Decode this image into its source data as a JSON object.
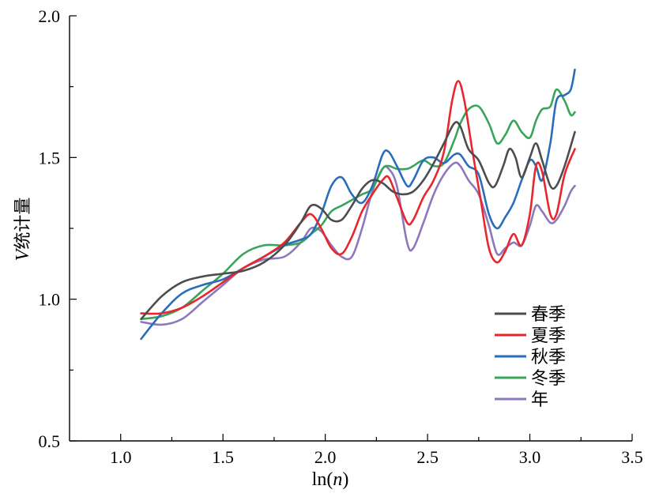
{
  "chart_data": {
    "type": "line",
    "xlabel": "ln(n)",
    "ylabel": "V统计量",
    "xlim": [
      0.75,
      3.5
    ],
    "ylim": [
      0.5,
      2.0
    ],
    "xticks": [
      "1.0",
      "1.5",
      "2.0",
      "2.5",
      "3.0",
      "3.5"
    ],
    "yticks": [
      "0.5",
      "1.0",
      "1.5",
      "2.0"
    ],
    "grid": false,
    "legend_position": "lower-right",
    "series": [
      {
        "name": "春季",
        "color": "#4d4d4d",
        "points": [
          [
            1.1,
            0.93
          ],
          [
            1.2,
            1.01
          ],
          [
            1.3,
            1.06
          ],
          [
            1.4,
            1.08
          ],
          [
            1.5,
            1.09
          ],
          [
            1.6,
            1.1
          ],
          [
            1.7,
            1.13
          ],
          [
            1.8,
            1.19
          ],
          [
            1.88,
            1.27
          ],
          [
            1.93,
            1.33
          ],
          [
            1.98,
            1.32
          ],
          [
            2.03,
            1.28
          ],
          [
            2.08,
            1.28
          ],
          [
            2.13,
            1.33
          ],
          [
            2.18,
            1.39
          ],
          [
            2.23,
            1.42
          ],
          [
            2.28,
            1.41
          ],
          [
            2.33,
            1.38
          ],
          [
            2.38,
            1.37
          ],
          [
            2.43,
            1.38
          ],
          [
            2.48,
            1.42
          ],
          [
            2.53,
            1.48
          ],
          [
            2.58,
            1.55
          ],
          [
            2.63,
            1.62
          ],
          [
            2.66,
            1.61
          ],
          [
            2.7,
            1.53
          ],
          [
            2.75,
            1.49
          ],
          [
            2.8,
            1.41
          ],
          [
            2.83,
            1.4
          ],
          [
            2.87,
            1.47
          ],
          [
            2.9,
            1.53
          ],
          [
            2.93,
            1.5
          ],
          [
            2.96,
            1.43
          ],
          [
            3.0,
            1.5
          ],
          [
            3.03,
            1.55
          ],
          [
            3.06,
            1.49
          ],
          [
            3.1,
            1.4
          ],
          [
            3.13,
            1.4
          ],
          [
            3.17,
            1.47
          ],
          [
            3.22,
            1.59
          ]
        ]
      },
      {
        "name": "夏季",
        "color": "#e8262b",
        "points": [
          [
            1.1,
            0.95
          ],
          [
            1.2,
            0.95
          ],
          [
            1.3,
            0.97
          ],
          [
            1.4,
            1.01
          ],
          [
            1.5,
            1.06
          ],
          [
            1.6,
            1.11
          ],
          [
            1.7,
            1.15
          ],
          [
            1.8,
            1.2
          ],
          [
            1.88,
            1.27
          ],
          [
            1.93,
            1.3
          ],
          [
            1.98,
            1.25
          ],
          [
            2.03,
            1.18
          ],
          [
            2.08,
            1.16
          ],
          [
            2.13,
            1.22
          ],
          [
            2.18,
            1.31
          ],
          [
            2.23,
            1.37
          ],
          [
            2.28,
            1.42
          ],
          [
            2.31,
            1.43
          ],
          [
            2.35,
            1.36
          ],
          [
            2.4,
            1.27
          ],
          [
            2.43,
            1.28
          ],
          [
            2.48,
            1.36
          ],
          [
            2.53,
            1.42
          ],
          [
            2.58,
            1.52
          ],
          [
            2.62,
            1.7
          ],
          [
            2.65,
            1.77
          ],
          [
            2.68,
            1.7
          ],
          [
            2.72,
            1.52
          ],
          [
            2.76,
            1.35
          ],
          [
            2.8,
            1.18
          ],
          [
            2.84,
            1.13
          ],
          [
            2.88,
            1.17
          ],
          [
            2.92,
            1.23
          ],
          [
            2.96,
            1.19
          ],
          [
            3.0,
            1.3
          ],
          [
            3.03,
            1.47
          ],
          [
            3.06,
            1.45
          ],
          [
            3.1,
            1.3
          ],
          [
            3.13,
            1.3
          ],
          [
            3.17,
            1.44
          ],
          [
            3.22,
            1.53
          ]
        ]
      },
      {
        "name": "秋季",
        "color": "#2a6ebb",
        "points": [
          [
            1.1,
            0.86
          ],
          [
            1.2,
            0.95
          ],
          [
            1.3,
            1.02
          ],
          [
            1.4,
            1.05
          ],
          [
            1.5,
            1.07
          ],
          [
            1.6,
            1.11
          ],
          [
            1.7,
            1.15
          ],
          [
            1.8,
            1.19
          ],
          [
            1.88,
            1.21
          ],
          [
            1.93,
            1.23
          ],
          [
            1.98,
            1.3
          ],
          [
            2.03,
            1.4
          ],
          [
            2.08,
            1.43
          ],
          [
            2.13,
            1.37
          ],
          [
            2.18,
            1.34
          ],
          [
            2.23,
            1.4
          ],
          [
            2.28,
            1.51
          ],
          [
            2.31,
            1.52
          ],
          [
            2.35,
            1.47
          ],
          [
            2.4,
            1.4
          ],
          [
            2.43,
            1.42
          ],
          [
            2.48,
            1.49
          ],
          [
            2.53,
            1.5
          ],
          [
            2.58,
            1.48
          ],
          [
            2.63,
            1.51
          ],
          [
            2.66,
            1.51
          ],
          [
            2.7,
            1.47
          ],
          [
            2.75,
            1.44
          ],
          [
            2.8,
            1.3
          ],
          [
            2.84,
            1.25
          ],
          [
            2.88,
            1.29
          ],
          [
            2.92,
            1.34
          ],
          [
            2.96,
            1.42
          ],
          [
            3.0,
            1.49
          ],
          [
            3.03,
            1.47
          ],
          [
            3.06,
            1.42
          ],
          [
            3.1,
            1.55
          ],
          [
            3.13,
            1.7
          ],
          [
            3.17,
            1.72
          ],
          [
            3.2,
            1.74
          ],
          [
            3.22,
            1.81
          ]
        ]
      },
      {
        "name": "冬季",
        "color": "#3aa55a",
        "points": [
          [
            1.1,
            0.93
          ],
          [
            1.2,
            0.94
          ],
          [
            1.3,
            0.97
          ],
          [
            1.4,
            1.03
          ],
          [
            1.5,
            1.09
          ],
          [
            1.6,
            1.16
          ],
          [
            1.7,
            1.19
          ],
          [
            1.8,
            1.19
          ],
          [
            1.88,
            1.2
          ],
          [
            1.93,
            1.23
          ],
          [
            1.98,
            1.26
          ],
          [
            2.03,
            1.31
          ],
          [
            2.08,
            1.33
          ],
          [
            2.13,
            1.35
          ],
          [
            2.18,
            1.37
          ],
          [
            2.23,
            1.39
          ],
          [
            2.28,
            1.46
          ],
          [
            2.31,
            1.47
          ],
          [
            2.35,
            1.46
          ],
          [
            2.4,
            1.46
          ],
          [
            2.43,
            1.47
          ],
          [
            2.48,
            1.49
          ],
          [
            2.53,
            1.47
          ],
          [
            2.58,
            1.48
          ],
          [
            2.63,
            1.56
          ],
          [
            2.66,
            1.62
          ],
          [
            2.7,
            1.67
          ],
          [
            2.75,
            1.68
          ],
          [
            2.8,
            1.62
          ],
          [
            2.84,
            1.55
          ],
          [
            2.88,
            1.58
          ],
          [
            2.92,
            1.63
          ],
          [
            2.96,
            1.59
          ],
          [
            3.0,
            1.57
          ],
          [
            3.03,
            1.63
          ],
          [
            3.06,
            1.67
          ],
          [
            3.1,
            1.68
          ],
          [
            3.13,
            1.74
          ],
          [
            3.17,
            1.7
          ],
          [
            3.2,
            1.65
          ],
          [
            3.22,
            1.66
          ]
        ]
      },
      {
        "name": "年",
        "color": "#8e78bd",
        "points": [
          [
            1.1,
            0.92
          ],
          [
            1.2,
            0.91
          ],
          [
            1.3,
            0.93
          ],
          [
            1.4,
            0.99
          ],
          [
            1.5,
            1.05
          ],
          [
            1.6,
            1.11
          ],
          [
            1.7,
            1.14
          ],
          [
            1.8,
            1.15
          ],
          [
            1.88,
            1.2
          ],
          [
            1.93,
            1.25
          ],
          [
            1.98,
            1.24
          ],
          [
            2.03,
            1.19
          ],
          [
            2.08,
            1.15
          ],
          [
            2.13,
            1.15
          ],
          [
            2.18,
            1.25
          ],
          [
            2.23,
            1.38
          ],
          [
            2.28,
            1.46
          ],
          [
            2.31,
            1.46
          ],
          [
            2.35,
            1.4
          ],
          [
            2.4,
            1.2
          ],
          [
            2.43,
            1.18
          ],
          [
            2.48,
            1.27
          ],
          [
            2.53,
            1.37
          ],
          [
            2.58,
            1.44
          ],
          [
            2.63,
            1.48
          ],
          [
            2.66,
            1.47
          ],
          [
            2.7,
            1.42
          ],
          [
            2.75,
            1.37
          ],
          [
            2.8,
            1.26
          ],
          [
            2.84,
            1.16
          ],
          [
            2.88,
            1.18
          ],
          [
            2.92,
            1.2
          ],
          [
            2.96,
            1.19
          ],
          [
            3.0,
            1.26
          ],
          [
            3.03,
            1.33
          ],
          [
            3.06,
            1.31
          ],
          [
            3.1,
            1.27
          ],
          [
            3.13,
            1.28
          ],
          [
            3.17,
            1.33
          ],
          [
            3.2,
            1.38
          ],
          [
            3.22,
            1.4
          ]
        ]
      }
    ]
  }
}
